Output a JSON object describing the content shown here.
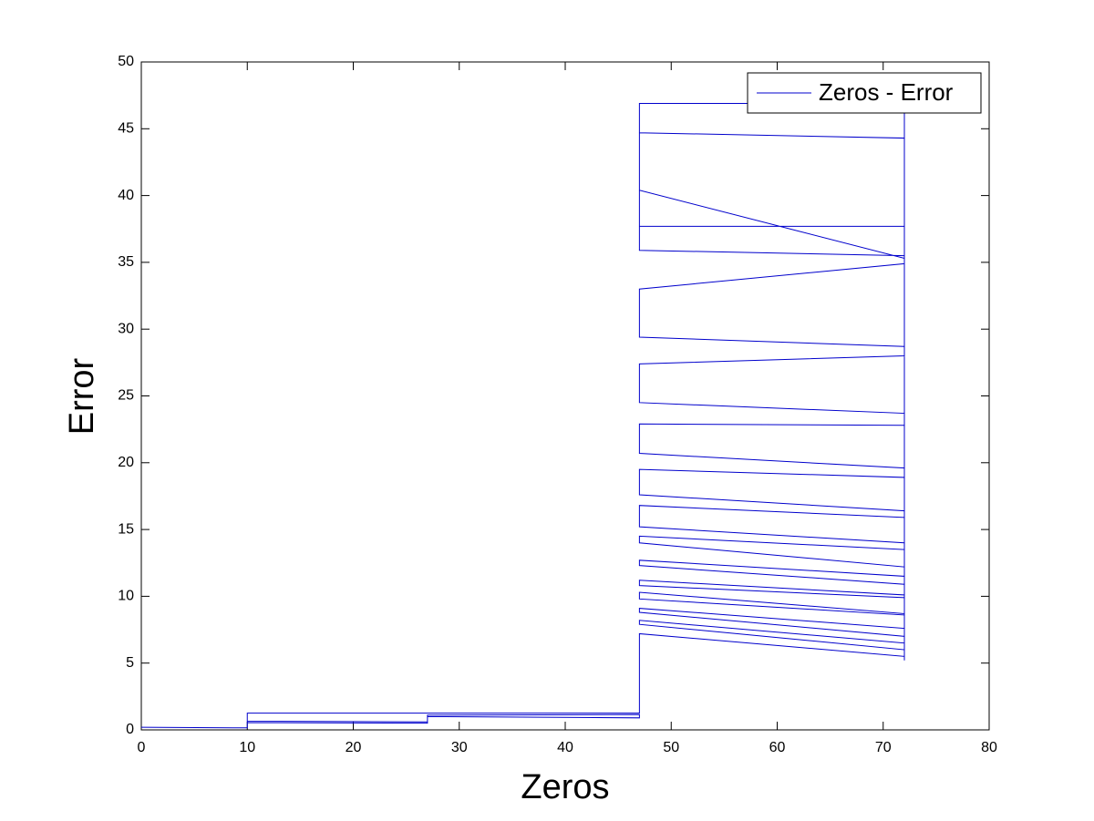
{
  "chart_data": {
    "type": "line",
    "x_label": "Zeros",
    "y_label": "Error",
    "xlim": [
      0,
      80
    ],
    "ylim": [
      0,
      50
    ],
    "xticks": [
      0,
      10,
      20,
      30,
      40,
      50,
      60,
      70,
      80
    ],
    "yticks": [
      0,
      5,
      10,
      15,
      20,
      25,
      30,
      35,
      40,
      45,
      50
    ],
    "grid": false,
    "legend_position": "upper-right",
    "x": [
      0,
      10,
      10,
      27,
      27,
      47,
      47,
      27,
      27,
      10,
      10,
      47,
      47,
      72,
      72,
      47,
      47,
      72,
      72,
      47,
      47,
      72,
      72,
      47,
      47,
      72,
      72,
      47,
      47,
      72,
      72,
      47,
      47,
      72,
      72,
      47,
      47,
      72,
      72,
      47,
      47,
      72,
      72,
      47,
      47,
      72,
      72,
      47,
      47,
      72,
      72,
      47,
      47,
      72,
      72,
      47,
      47,
      72,
      72,
      47,
      47,
      72,
      72,
      47,
      47,
      72,
      72,
      47,
      47,
      72,
      72
    ],
    "series": [
      {
        "name": "Zeros - Error",
        "color": "#0000cc",
        "values": [
          0.2,
          0.15,
          0.65,
          0.6,
          1.1,
          1.15,
          0.9,
          1.0,
          0.5,
          0.55,
          1.25,
          1.25,
          7.2,
          5.5,
          6.0,
          7.9,
          8.2,
          6.5,
          7.0,
          8.8,
          9.1,
          7.6,
          8.6,
          9.8,
          10.3,
          8.7,
          9.9,
          10.8,
          11.2,
          10.1,
          10.9,
          12.3,
          12.7,
          11.5,
          12.2,
          14.0,
          14.5,
          13.5,
          14.0,
          15.2,
          16.8,
          15.9,
          16.4,
          17.6,
          19.5,
          18.9,
          19.6,
          20.7,
          22.9,
          22.8,
          23.7,
          24.5,
          27.4,
          28.0,
          28.7,
          29.4,
          33.0,
          34.9,
          35.5,
          35.9,
          40.4,
          35.3,
          37.7,
          37.7,
          46.9,
          46.9,
          44.3,
          44.7,
          46.9,
          46.9,
          5.2
        ]
      }
    ]
  }
}
